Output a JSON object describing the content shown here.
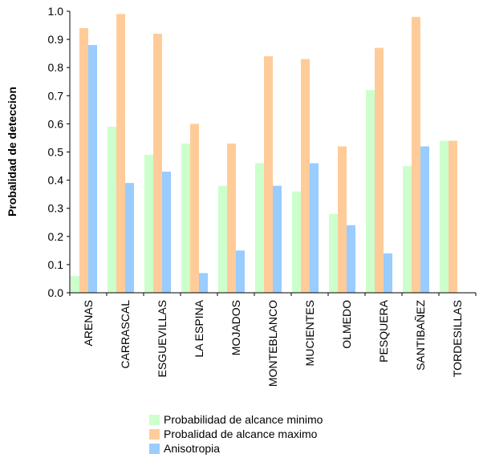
{
  "chart_data": {
    "type": "bar",
    "ylabel": "Probalidad de deteccion",
    "ylim": [
      0,
      1.0
    ],
    "yticks": [
      "0.0",
      "0.1",
      "0.2",
      "0.3",
      "0.4",
      "0.5",
      "0.6",
      "0.7",
      "0.8",
      "0.9",
      "1.0"
    ],
    "categories": [
      "ARENAS",
      "CARRASCAL",
      "ESGUEVILLAS",
      "LA ESPINA",
      "MOJADOS",
      "MONTEBLANCO",
      "MUCIENTES",
      "OLMEDO",
      "PESQUERA",
      "SANTIBAÑEZ",
      "TORDESILLAS"
    ],
    "series": [
      {
        "name": "Probabilidad de alcance minimo",
        "color": "#ccffcc",
        "values": [
          0.06,
          0.59,
          0.49,
          0.53,
          0.38,
          0.46,
          0.36,
          0.28,
          0.72,
          0.45,
          0.54
        ]
      },
      {
        "name": "Probalidad de alcance maximo",
        "color": "#ffcc99",
        "values": [
          0.94,
          0.99,
          0.92,
          0.6,
          0.53,
          0.84,
          0.83,
          0.52,
          0.87,
          0.98,
          0.54
        ]
      },
      {
        "name": "Anisotropia",
        "color": "#99ccff",
        "values": [
          0.88,
          0.39,
          0.43,
          0.07,
          0.15,
          0.38,
          0.46,
          0.24,
          0.14,
          0.52,
          null
        ]
      }
    ],
    "legend_position": "bottom-center",
    "grid": false
  }
}
